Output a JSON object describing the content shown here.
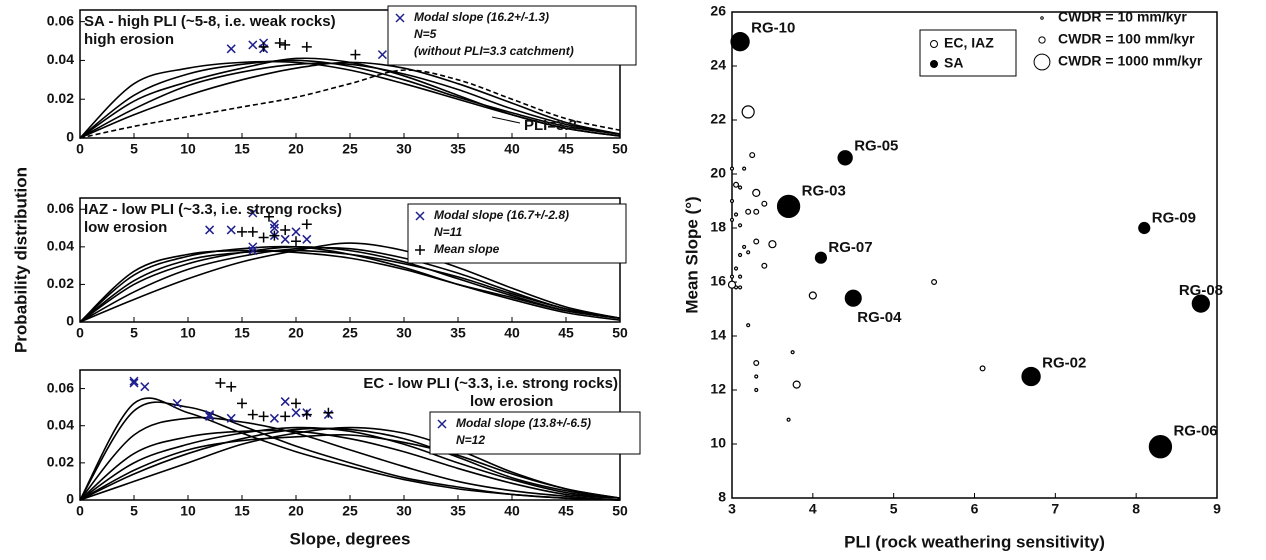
{
  "chart_data": [
    {
      "type": "line",
      "title": "SA - high PLI (~5-8, i.e. weak rocks)",
      "subtitle": "high erosion",
      "annotation": "PLI=3.3",
      "x": [
        0,
        5,
        10,
        15,
        20,
        25,
        30,
        35,
        40,
        45,
        50
      ],
      "series": [
        {
          "color": "#000000",
          "values": [
            0,
            0.022,
            0.033,
            0.038,
            0.04,
            0.037,
            0.03,
            0.021,
            0.013,
            0.006,
            0.002
          ]
        },
        {
          "color": "#000000",
          "values": [
            0,
            0.028,
            0.036,
            0.039,
            0.039,
            0.035,
            0.028,
            0.02,
            0.012,
            0.005,
            0.001
          ]
        },
        {
          "color": "#000000",
          "values": [
            0,
            0.015,
            0.027,
            0.034,
            0.038,
            0.038,
            0.033,
            0.025,
            0.015,
            0.007,
            0.002
          ]
        },
        {
          "color": "#000000",
          "values": [
            0,
            0.019,
            0.029,
            0.036,
            0.041,
            0.039,
            0.032,
            0.022,
            0.012,
            0.005,
            0.001
          ]
        },
        {
          "color": "#000000",
          "values": [
            0,
            0.012,
            0.022,
            0.03,
            0.036,
            0.039,
            0.036,
            0.028,
            0.018,
            0.008,
            0.002
          ]
        },
        {
          "color": "#000000",
          "dashed": true,
          "values": [
            0,
            0.006,
            0.011,
            0.016,
            0.021,
            0.028,
            0.035,
            0.03,
            0.02,
            0.01,
            0.004
          ]
        }
      ],
      "markers": [
        {
          "name": "Modal slope (16.2+/-1.3)",
          "symbol": "x",
          "color": "#1f1f8f",
          "x": [
            14,
            16,
            17,
            17,
            28
          ],
          "y": [
            0.046,
            0.048,
            0.049,
            0.046,
            0.043
          ]
        },
        {
          "symbol": "+",
          "color": "#000000",
          "x": [
            17,
            18.5,
            19,
            21,
            25.5
          ],
          "y": [
            0.047,
            0.049,
            0.048,
            0.047,
            0.043
          ]
        }
      ],
      "legend_notes": [
        "N=5",
        "(without PLI=3.3 catchment)"
      ],
      "xlim": [
        0,
        50
      ],
      "xticks": [
        0,
        5,
        10,
        15,
        20,
        25,
        30,
        35,
        40,
        45,
        50
      ],
      "ylim": [
        0,
        0.066
      ],
      "yticks": [
        0,
        0.02,
        0.04,
        0.06
      ]
    },
    {
      "type": "line",
      "title": "IAZ - low PLI (~3.3, i.e. strong rocks)",
      "subtitle": "low erosion",
      "y_label": "Probability distribution",
      "x": [
        0,
        5,
        10,
        15,
        20,
        25,
        30,
        35,
        40,
        45,
        50
      ],
      "series": [
        {
          "color": "#000000",
          "values": [
            0,
            0.025,
            0.035,
            0.039,
            0.04,
            0.036,
            0.029,
            0.02,
            0.012,
            0.005,
            0.001
          ]
        },
        {
          "color": "#000000",
          "values": [
            0,
            0.02,
            0.031,
            0.037,
            0.04,
            0.038,
            0.032,
            0.023,
            0.014,
            0.006,
            0.002
          ]
        },
        {
          "color": "#000000",
          "values": [
            0,
            0.016,
            0.028,
            0.035,
            0.039,
            0.039,
            0.034,
            0.026,
            0.016,
            0.007,
            0.002
          ]
        },
        {
          "color": "#000000",
          "values": [
            0,
            0.027,
            0.036,
            0.038,
            0.037,
            0.034,
            0.028,
            0.02,
            0.013,
            0.006,
            0.002
          ]
        },
        {
          "color": "#000000",
          "values": [
            0,
            0.012,
            0.023,
            0.032,
            0.038,
            0.042,
            0.038,
            0.029,
            0.018,
            0.008,
            0.002
          ]
        },
        {
          "color": "#000000",
          "values": [
            0,
            0.022,
            0.033,
            0.037,
            0.038,
            0.036,
            0.031,
            0.024,
            0.015,
            0.007,
            0.002
          ]
        }
      ],
      "markers": [
        {
          "name": "Modal slope (16.7+/-2.8)",
          "symbol": "x",
          "color": "#1f1f8f",
          "x": [
            12,
            14,
            16,
            16,
            16,
            18,
            18,
            19,
            20,
            21,
            18
          ],
          "y": [
            0.049,
            0.049,
            0.058,
            0.04,
            0.038,
            0.052,
            0.05,
            0.044,
            0.048,
            0.044,
            0.046
          ]
        },
        {
          "name": "Mean slope",
          "symbol": "+",
          "color": "#000000",
          "x": [
            15,
            16,
            17.5,
            18,
            19,
            20,
            21,
            17
          ],
          "y": [
            0.048,
            0.048,
            0.056,
            0.046,
            0.049,
            0.043,
            0.052,
            0.045
          ]
        }
      ],
      "legend_notes": [
        "N=11"
      ],
      "xlim": [
        0,
        50
      ],
      "xticks": [
        0,
        5,
        10,
        15,
        20,
        25,
        30,
        35,
        40,
        45,
        50
      ],
      "ylim": [
        0,
        0.066
      ],
      "yticks": [
        0,
        0.02,
        0.04,
        0.06
      ]
    },
    {
      "type": "line",
      "title": "EC - low PLI (~3.3, i.e. strong rocks)",
      "subtitle": "low erosion",
      "x_label": "Slope, degrees",
      "x": [
        0,
        5,
        10,
        15,
        20,
        25,
        30,
        35,
        40,
        45,
        50
      ],
      "series": [
        {
          "color": "#000000",
          "values": [
            0,
            0.052,
            0.047,
            0.036,
            0.026,
            0.018,
            0.011,
            0.006,
            0.003,
            0.001,
            0
          ]
        },
        {
          "color": "#000000",
          "values": [
            0,
            0.048,
            0.05,
            0.04,
            0.029,
            0.02,
            0.012,
            0.007,
            0.003,
            0.001,
            0
          ]
        },
        {
          "color": "#000000",
          "values": [
            0,
            0.035,
            0.044,
            0.042,
            0.036,
            0.027,
            0.018,
            0.01,
            0.005,
            0.002,
            0
          ]
        },
        {
          "color": "#000000",
          "values": [
            0,
            0.02,
            0.03,
            0.036,
            0.039,
            0.037,
            0.03,
            0.02,
            0.011,
            0.004,
            0.001
          ]
        },
        {
          "color": "#000000",
          "values": [
            0,
            0.014,
            0.025,
            0.033,
            0.038,
            0.038,
            0.033,
            0.023,
            0.012,
            0.005,
            0.001
          ]
        },
        {
          "color": "#000000",
          "values": [
            0,
            0.01,
            0.02,
            0.03,
            0.036,
            0.039,
            0.036,
            0.027,
            0.015,
            0.006,
            0.001
          ]
        },
        {
          "color": "#000000",
          "values": [
            0,
            0.025,
            0.034,
            0.037,
            0.037,
            0.033,
            0.026,
            0.017,
            0.009,
            0.003,
            0.001
          ]
        },
        {
          "color": "#000000",
          "values": [
            0,
            0.016,
            0.027,
            0.032,
            0.034,
            0.035,
            0.031,
            0.024,
            0.014,
            0.006,
            0.001
          ]
        }
      ],
      "markers": [
        {
          "name": "Modal slope (13.8+/-6.5)",
          "symbol": "x",
          "color": "#1f1f8f",
          "x": [
            5,
            5,
            6,
            9,
            12,
            14,
            18,
            19,
            20,
            21,
            23,
            12
          ],
          "y": [
            0.064,
            0.063,
            0.061,
            0.052,
            0.046,
            0.044,
            0.044,
            0.053,
            0.047,
            0.047,
            0.046,
            0.045
          ]
        },
        {
          "symbol": "+",
          "color": "#000000",
          "x": [
            13,
            14,
            15,
            16,
            17,
            19,
            20,
            21,
            23
          ],
          "y": [
            0.063,
            0.061,
            0.052,
            0.046,
            0.045,
            0.045,
            0.052,
            0.046,
            0.047
          ]
        }
      ],
      "legend_notes": [
        "N=12"
      ],
      "xlim": [
        0,
        50
      ],
      "xticks": [
        0,
        5,
        10,
        15,
        20,
        25,
        30,
        35,
        40,
        45,
        50
      ],
      "ylim": [
        0,
        0.07
      ],
      "yticks": [
        0,
        0.02,
        0.04,
        0.06
      ]
    },
    {
      "type": "scatter",
      "x_label": "PLI (rock weathering sensitivity)",
      "y_label": "Mean Slope (°)",
      "series": [
        {
          "name": "EC, IAZ",
          "filled": false,
          "color": "#000000",
          "x": [
            3.2,
            3.0,
            3.05,
            3.1,
            3.0,
            3.05,
            3.0,
            3.1,
            3.15,
            3.1,
            3.2,
            3.2,
            3.3,
            3.3,
            3.4,
            3.3,
            3.5,
            3.4,
            3.05,
            3.0,
            3.1,
            3.05,
            3.0,
            3.1,
            3.2,
            3.3,
            3.3,
            3.3,
            3.75,
            3.8,
            3.7,
            4.0,
            5.5,
            6.1,
            3.25,
            3.15
          ],
          "y": [
            22.3,
            20.2,
            19.6,
            19.5,
            19.0,
            18.5,
            18.3,
            18.1,
            17.3,
            17.0,
            17.1,
            18.6,
            19.3,
            18.6,
            18.9,
            17.5,
            17.4,
            16.6,
            16.5,
            16.2,
            16.2,
            15.8,
            15.9,
            15.8,
            14.4,
            13.0,
            12.5,
            12.0,
            13.4,
            12.2,
            10.9,
            15.5,
            16.0,
            12.8,
            20.7,
            20.2
          ],
          "size": [
            500,
            15,
            50,
            15,
            15,
            15,
            15,
            15,
            15,
            15,
            15,
            50,
            130,
            50,
            50,
            50,
            130,
            50,
            15,
            15,
            15,
            15,
            130,
            15,
            15,
            50,
            15,
            15,
            15,
            130,
            15,
            130,
            50,
            50,
            50,
            15
          ]
        },
        {
          "name": "SA",
          "filled": true,
          "color": "#000000",
          "x": [
            3.1,
            4.4,
            3.7,
            8.1,
            4.1,
            4.5,
            8.8,
            6.7,
            8.3
          ],
          "y": [
            24.9,
            20.6,
            18.8,
            18.0,
            16.9,
            15.4,
            15.2,
            12.5,
            9.9
          ],
          "size": [
            1400,
            750,
            2300,
            400,
            400,
            1000,
            1200,
            1400,
            2300
          ],
          "labels": [
            "RG-10",
            "RG-05",
            "RG-03",
            "RG-09",
            "RG-07",
            "RG-04",
            "RG-08",
            "RG-02",
            "RG-06"
          ]
        }
      ],
      "size_legend": [
        {
          "value": 10,
          "label": "CWDR = 10 mm/kyr"
        },
        {
          "value": 100,
          "label": "CWDR = 100 mm/kyr"
        },
        {
          "value": 1000,
          "label": "CWDR = 1000 mm/kyr"
        }
      ],
      "xlim": [
        3,
        9
      ],
      "xticks": [
        3,
        4,
        5,
        6,
        7,
        8,
        9
      ],
      "ylim": [
        8,
        26
      ],
      "yticks": [
        8,
        10,
        12,
        14,
        16,
        18,
        20,
        22,
        24,
        26
      ]
    }
  ]
}
